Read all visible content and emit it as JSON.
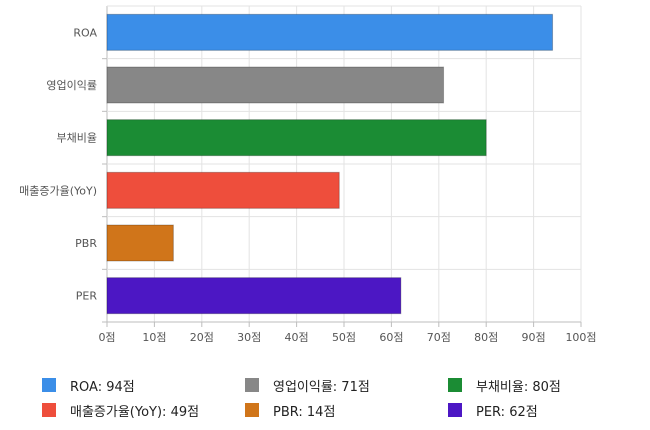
{
  "chart_data": {
    "type": "bar",
    "orientation": "horizontal",
    "categories": [
      "ROA",
      "영업이익률",
      "부채비율",
      "매출증가율(YoY)",
      "PBR",
      "PER"
    ],
    "values": [
      94,
      71,
      80,
      49,
      14,
      62
    ],
    "colors": [
      "#3b8ee8",
      "#878787",
      "#1b8c34",
      "#ee4e3c",
      "#d0751a",
      "#4c17c4"
    ],
    "x_ticks": [
      "0점",
      "10점",
      "20점",
      "30점",
      "40점",
      "50점",
      "60점",
      "70점",
      "80점",
      "90점",
      "100점"
    ],
    "xlim": [
      0,
      100
    ],
    "grid": true,
    "legend_position": "bottom",
    "legend": [
      {
        "label": "ROA: 94점",
        "color": "#3b8ee8"
      },
      {
        "label": "영업이익률: 71점",
        "color": "#878787"
      },
      {
        "label": "부채비율: 80점",
        "color": "#1b8c34"
      },
      {
        "label": "매출증가율(YoY): 49점",
        "color": "#ee4e3c"
      },
      {
        "label": "PBR: 14점",
        "color": "#d0751a"
      },
      {
        "label": "PER: 62점",
        "color": "#4c17c4"
      }
    ]
  }
}
